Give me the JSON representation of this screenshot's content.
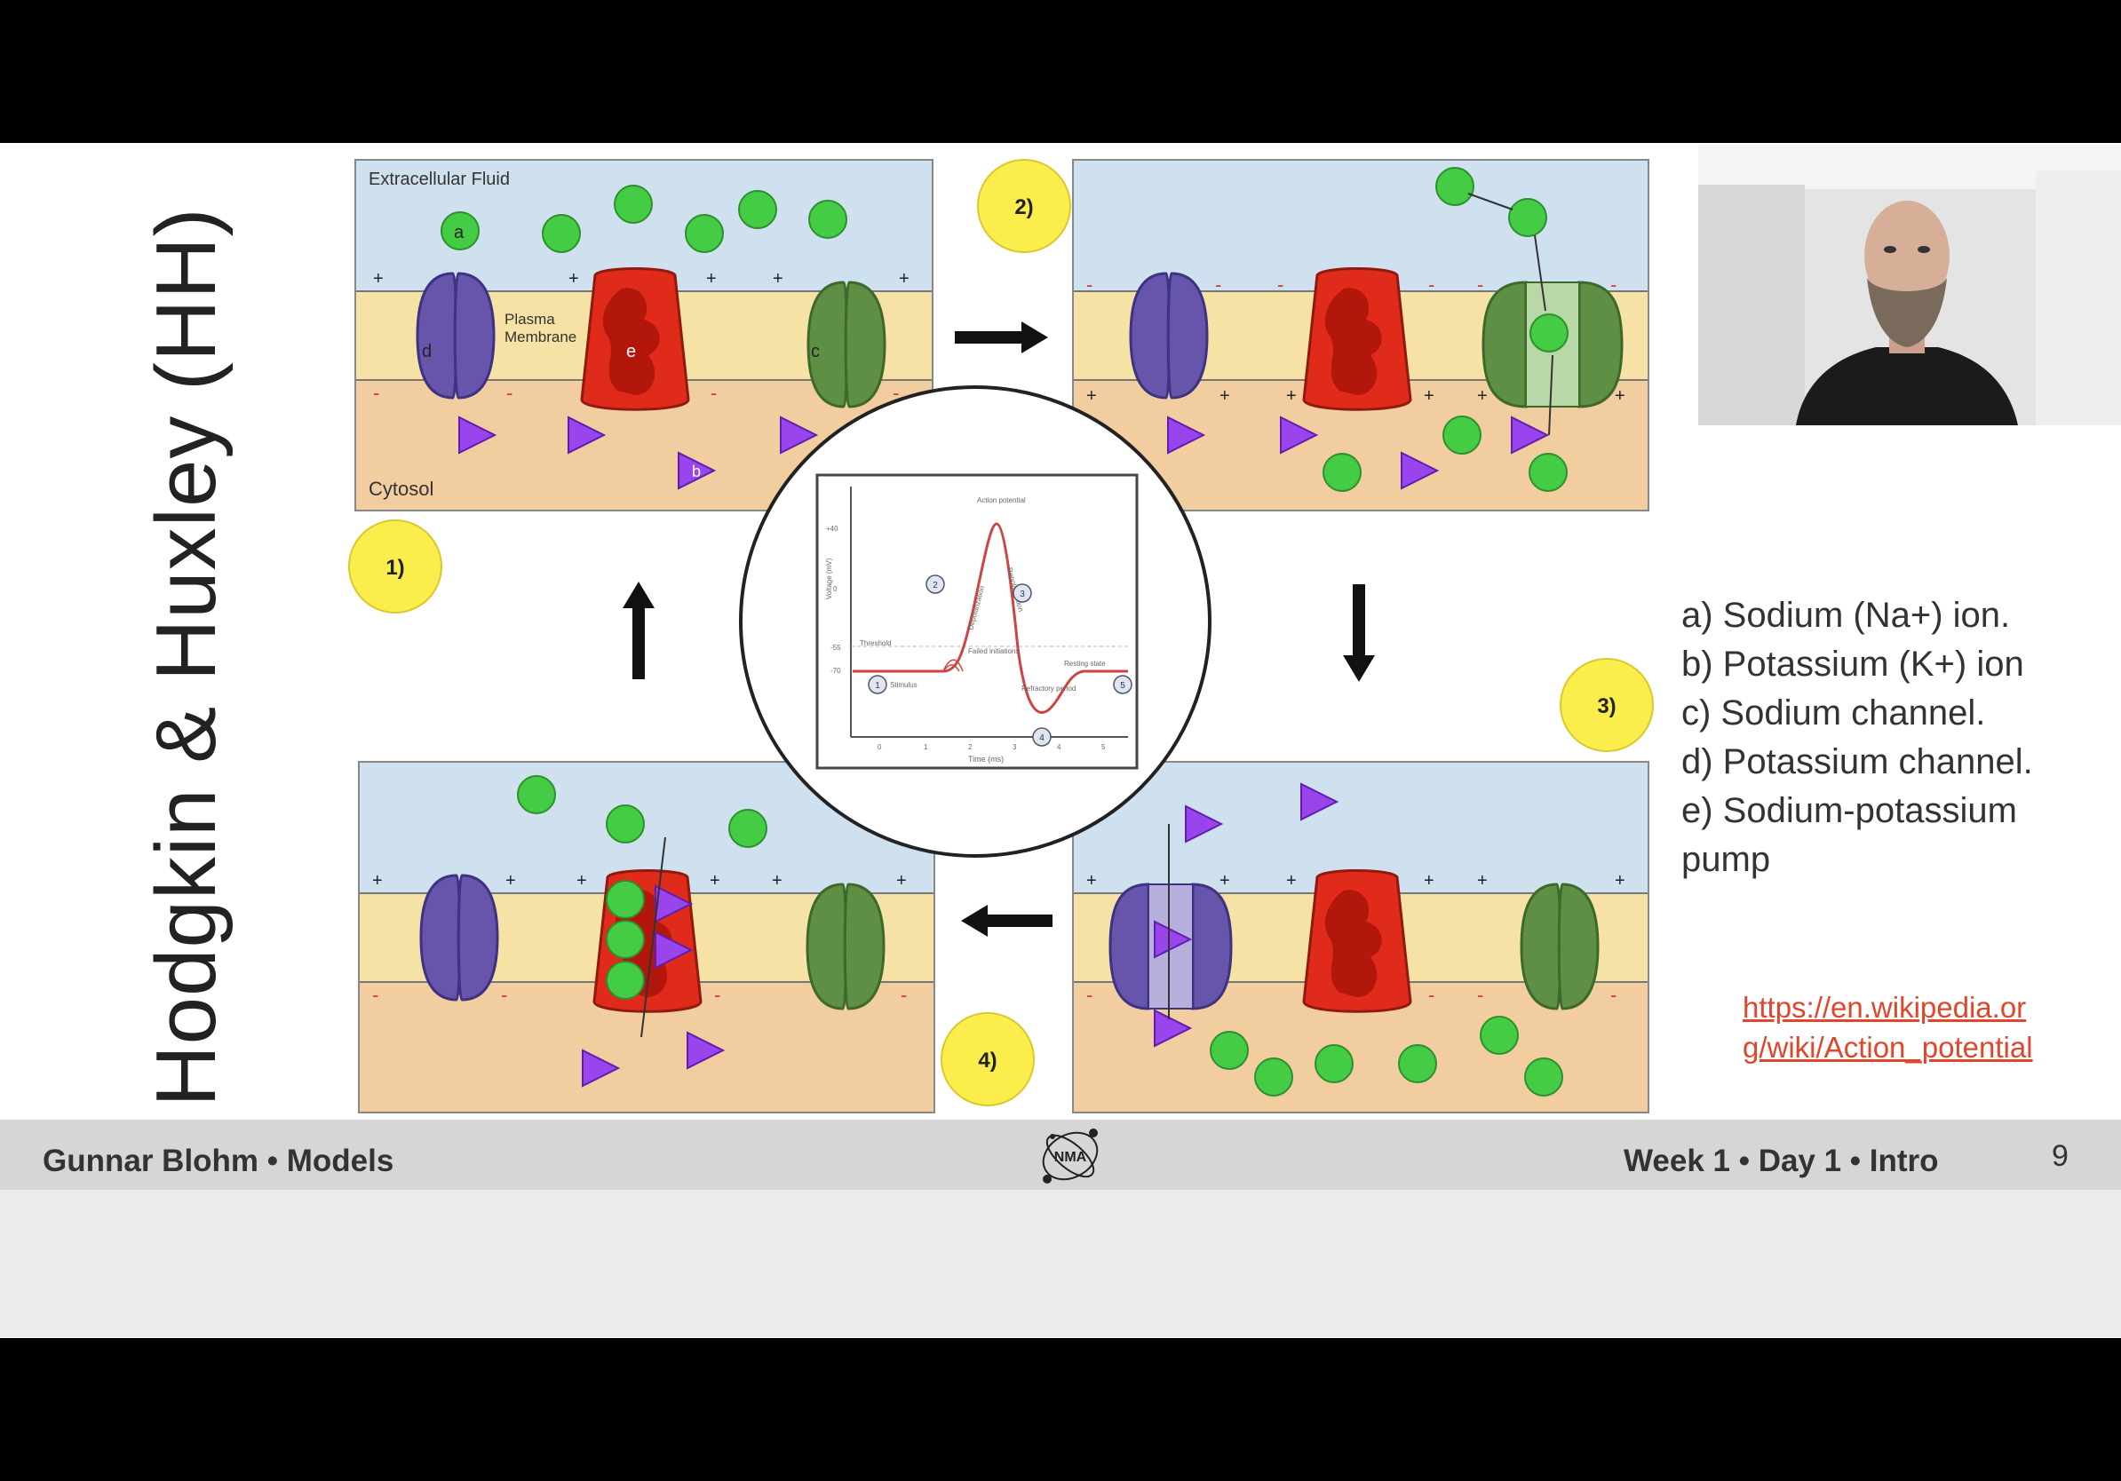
{
  "slide": {
    "title": "Hodgkin & Huxley (HH)",
    "footer": {
      "presenter": "Gunnar Blohm • Models",
      "session": "Week 1 • Day 1 • Intro",
      "page_number": "9",
      "logo_letters": "NMA"
    },
    "legend": [
      "a) Sodium (Na+) ion.",
      "b) Potassium (K+) ion",
      "c) Sodium channel.",
      "d) Potassium channel.",
      "e) Sodium-potassium",
      "pump"
    ],
    "reference_link": {
      "line1": "https://en.wikipedia.or",
      "line2": "g/wiki/Action_potential"
    },
    "diagram": {
      "panel1": {
        "extracellular_label": "Extracellular Fluid",
        "membrane_label_1": "Plasma",
        "membrane_label_2": "Membrane",
        "cytosol_label": "Cytosol",
        "label_a": "a",
        "label_b": "b",
        "label_c": "c",
        "label_d": "d",
        "label_e": "e"
      },
      "steps": [
        "1)",
        "2)",
        "3)",
        "4)"
      ],
      "graph": {
        "action_potential": "Action potential",
        "threshold": "Threshold",
        "resting_state": "Resting state",
        "stimulus": "Stimulus",
        "failed_initiations": "Failed initiations",
        "refractory_period": "Refractory period",
        "depolarization": "Depolarization",
        "repolarization": "Repolarization",
        "y_axis": "Voltage (mV)",
        "x_axis": "Time (ms)",
        "y_ticks": [
          "+40",
          "0",
          "-55",
          "-70"
        ],
        "x_ticks": [
          "0",
          "1",
          "2",
          "3",
          "4",
          "5"
        ],
        "circle_numbers": [
          "1",
          "2",
          "3",
          "4",
          "5"
        ]
      }
    }
  },
  "colors": {
    "extracellular": "#cfe0ef",
    "membrane": "#f6e2a5",
    "cytosol": "#f2cda0",
    "sodium_ion": "#44cc44",
    "potassium_ion": "#9a44ee",
    "k_channel": "#6655aa",
    "na_channel": "#5e8f45",
    "pump": "#e02a1a",
    "step_badge": "#fbee4c",
    "link": "#e0462b"
  }
}
